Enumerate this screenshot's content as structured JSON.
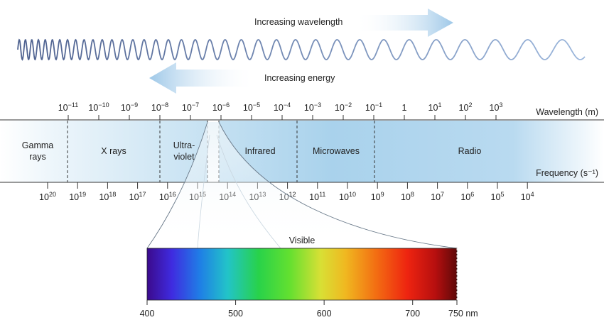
{
  "arrows": {
    "wavelength": "Increasing wavelength",
    "energy": "Increasing energy"
  },
  "axes": {
    "wavelength_label": "Wavelength (m)",
    "frequency_label": "Frequency (s⁻¹)"
  },
  "wavelength_ticks": [
    {
      "base": "10",
      "exp": "−11"
    },
    {
      "base": "10",
      "exp": "−10"
    },
    {
      "base": "10",
      "exp": "−9"
    },
    {
      "base": "10",
      "exp": "−8"
    },
    {
      "base": "10",
      "exp": "−7"
    },
    {
      "base": "10",
      "exp": "−6"
    },
    {
      "base": "10",
      "exp": "−5"
    },
    {
      "base": "10",
      "exp": "−4"
    },
    {
      "base": "10",
      "exp": "−3"
    },
    {
      "base": "10",
      "exp": "−2"
    },
    {
      "base": "10",
      "exp": "−1"
    },
    {
      "base": "1",
      "exp": ""
    },
    {
      "base": "10",
      "exp": "1"
    },
    {
      "base": "10",
      "exp": "2"
    },
    {
      "base": "10",
      "exp": "3"
    }
  ],
  "frequency_ticks": [
    {
      "base": "10",
      "exp": "20"
    },
    {
      "base": "10",
      "exp": "19"
    },
    {
      "base": "10",
      "exp": "18"
    },
    {
      "base": "10",
      "exp": "17"
    },
    {
      "base": "10",
      "exp": "16"
    },
    {
      "base": "10",
      "exp": "15"
    },
    {
      "base": "10",
      "exp": "14"
    },
    {
      "base": "10",
      "exp": "13"
    },
    {
      "base": "10",
      "exp": "12"
    },
    {
      "base": "10",
      "exp": "11"
    },
    {
      "base": "10",
      "exp": "10"
    },
    {
      "base": "10",
      "exp": "9"
    },
    {
      "base": "10",
      "exp": "8"
    },
    {
      "base": "10",
      "exp": "7"
    },
    {
      "base": "10",
      "exp": "6"
    },
    {
      "base": "10",
      "exp": "5"
    },
    {
      "base": "10",
      "exp": "4"
    }
  ],
  "regions": {
    "gamma_line1": "Gamma",
    "gamma_line2": "rays",
    "xrays": "X rays",
    "uv_line1": "Ultra-",
    "uv_line2": "violet",
    "infrared": "Infrared",
    "microwaves": "Microwaves",
    "radio": "Radio"
  },
  "visible": {
    "title": "Visible",
    "ticks": [
      "400",
      "500",
      "600",
      "700",
      "750 nm"
    ],
    "tick_values_nm": [
      400,
      500,
      600,
      700,
      750
    ],
    "range_nm": [
      400,
      750
    ]
  },
  "colors": {
    "band": "#a9d2ec",
    "arrow": "#b7d7ee",
    "wave": "#6f8bb3",
    "spectrum_start": "#3a0a8a",
    "spectrum_end": "#6a0a0a"
  }
}
